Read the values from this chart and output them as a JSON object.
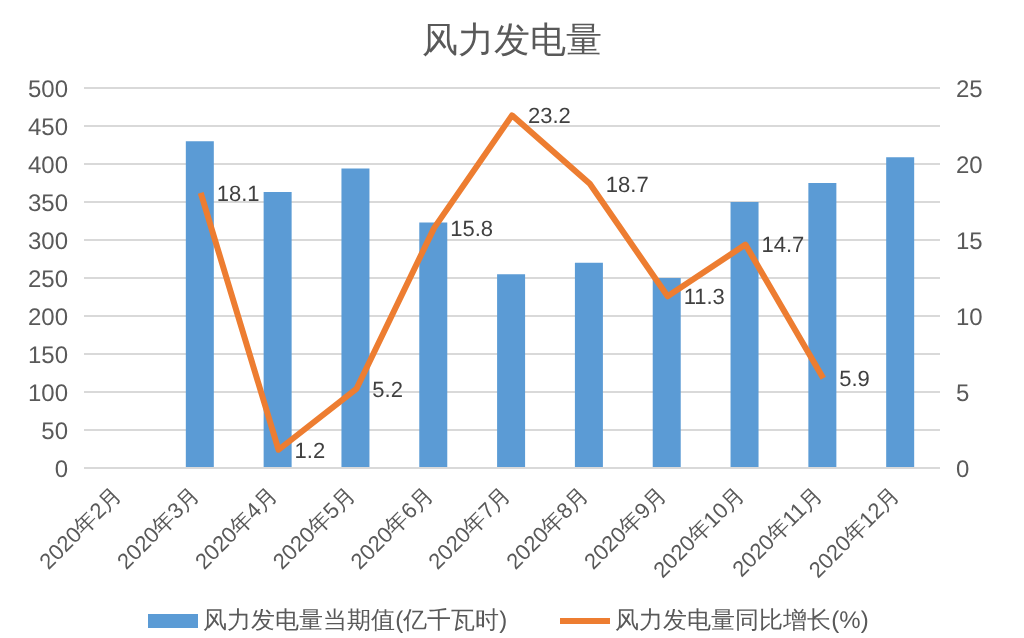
{
  "chart_data": {
    "type": "bar",
    "title": "风力发电量",
    "categories": [
      "2020年2月",
      "2020年3月",
      "2020年4月",
      "2020年5月",
      "2020年6月",
      "2020年7月",
      "2020年8月",
      "2020年9月",
      "2020年10月",
      "2020年11月",
      "2020年12月"
    ],
    "series": [
      {
        "name": "风力发电量当期值(亿千瓦时)",
        "color": "#5b9bd5",
        "values": [
          null,
          430,
          363,
          394,
          323,
          255,
          270,
          250,
          350,
          375,
          409
        ]
      },
      {
        "name": "风力发电量同比增长(%)",
        "type": "line",
        "axis": "y2",
        "color": "#ed7d31",
        "values": [
          null,
          18.1,
          1.2,
          5.2,
          15.8,
          23.2,
          18.7,
          11.3,
          14.7,
          5.9,
          null
        ],
        "data_labels": true
      }
    ],
    "ylim": [
      0,
      500
    ],
    "yticks": [
      0,
      50,
      100,
      150,
      200,
      250,
      300,
      350,
      400,
      450,
      500
    ],
    "y2lim": [
      0,
      25
    ],
    "y2ticks": [
      0,
      5,
      10,
      15,
      20,
      25
    ],
    "grid": "y",
    "legend": "bottom"
  }
}
